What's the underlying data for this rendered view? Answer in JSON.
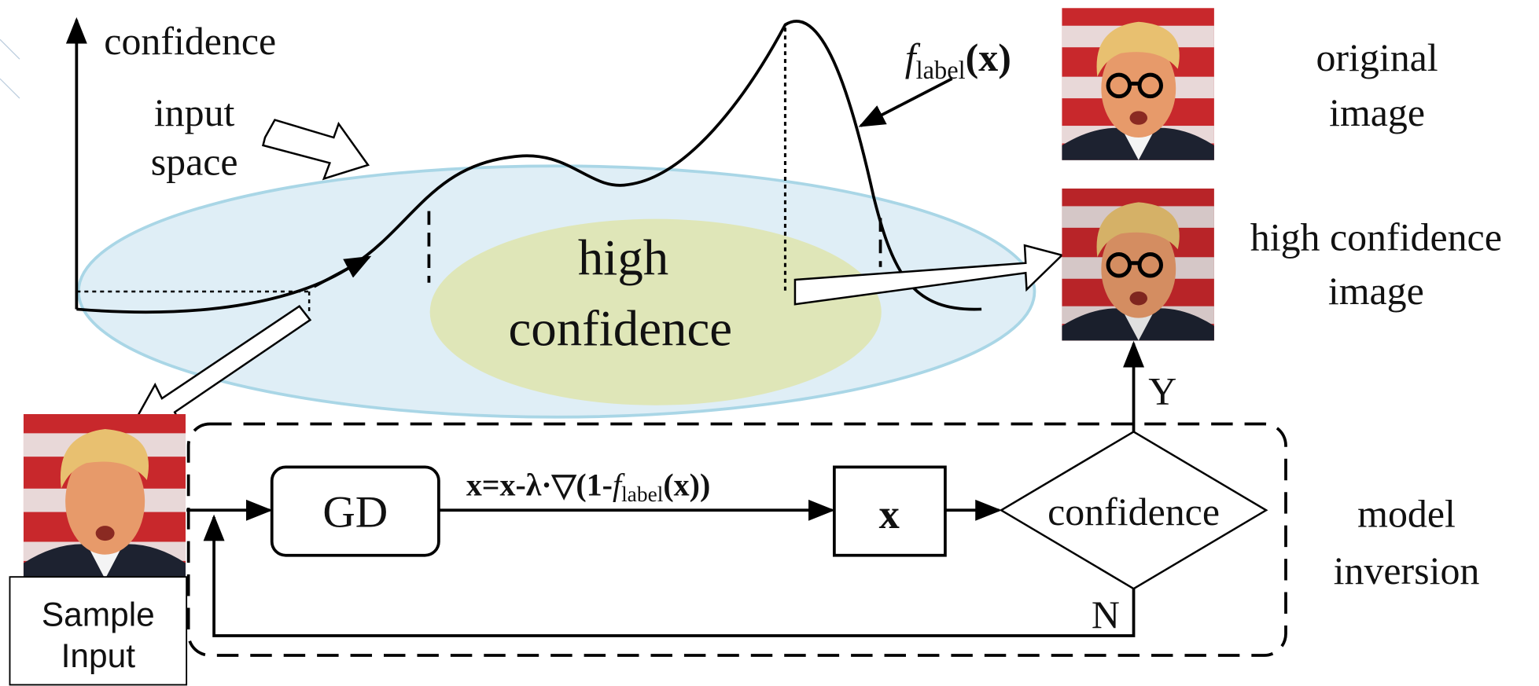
{
  "axis_label": "confidence",
  "input_space": [
    "input",
    "space"
  ],
  "high_confidence_region": [
    "high",
    "confidence"
  ],
  "function_label": {
    "f": "f",
    "sub": "label",
    "arg": "(x)"
  },
  "original_image_label": [
    "original",
    "image"
  ],
  "high_confidence_image_label": [
    "high confidence",
    "image"
  ],
  "flow": {
    "gd": "GD",
    "update_rule": {
      "pre": "x=x-λ·▽(1-",
      "f": "f",
      "sub": "label",
      "post": "(x))"
    },
    "x": "x",
    "decision": "confidence",
    "yes": "Y",
    "no": "N",
    "loop_label": [
      "model",
      "inversion"
    ]
  },
  "sample_input": [
    "Sample",
    "Input"
  ]
}
